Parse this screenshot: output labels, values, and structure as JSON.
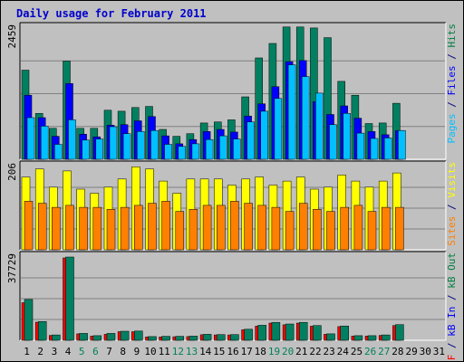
{
  "chart_data": {
    "type": "bar",
    "title": "Daily usage for February 2011",
    "categories": [
      "1",
      "2",
      "3",
      "4",
      "5",
      "6",
      "7",
      "8",
      "9",
      "10",
      "11",
      "12",
      "13",
      "14",
      "15",
      "16",
      "17",
      "18",
      "19",
      "20",
      "21",
      "22",
      "23",
      "24",
      "25",
      "26",
      "27",
      "28",
      "29",
      "30",
      "31"
    ],
    "weekend_days": [
      5,
      6,
      12,
      13,
      19,
      20,
      26,
      27
    ],
    "panels": [
      {
        "id": "hits",
        "ymax_label": "2459",
        "ymax": 2459,
        "right_labels": [
          {
            "text": "Pages",
            "color": "#00c0ff"
          },
          {
            "text": " / ",
            "color": "#000080"
          },
          {
            "text": "Files",
            "color": "#0000ff"
          },
          {
            "text": " / ",
            "color": "#000080"
          },
          {
            "text": "Hits",
            "color": "#008040"
          }
        ],
        "series": [
          {
            "name": "Hits",
            "color": "#008060",
            "values": [
              1670,
              860,
              580,
              1840,
              580,
              580,
              920,
              900,
              970,
              990,
              560,
              430,
              480,
              680,
              700,
              740,
              1170,
              1900,
              2170,
              2480,
              2480,
              2460,
              2280,
              1460,
              1200,
              670,
              680,
              1050,
              0,
              0,
              0
            ]
          },
          {
            "name": "Files",
            "color": "#0000ff",
            "values": [
              1200,
              780,
              430,
              1420,
              470,
              420,
              640,
              650,
              720,
              800,
              440,
              290,
              370,
              520,
              560,
              510,
              810,
              1040,
              1360,
              1830,
              1850,
              1080,
              840,
              1000,
              770,
              520,
              460,
              540,
              0,
              0,
              0
            ]
          },
          {
            "name": "Pages",
            "color": "#00c0ff",
            "values": [
              780,
              620,
              280,
              740,
              360,
              380,
              610,
              480,
              520,
              540,
              280,
              240,
              290,
              370,
              440,
              380,
              700,
              900,
              1140,
              1770,
              1550,
              1240,
              650,
              860,
              490,
              390,
              400,
              540,
              0,
              0,
              0
            ]
          }
        ]
      },
      {
        "id": "visits",
        "ymax_label": "206",
        "ymax": 206,
        "right_labels": [
          {
            "text": "Sites",
            "color": "#ff8000"
          },
          {
            "text": " / ",
            "color": "#000080"
          },
          {
            "text": "Visits",
            "color": "#ffff00"
          }
        ],
        "series": [
          {
            "name": "Visits",
            "color": "#ffff00",
            "values": [
              180,
              200,
              155,
              195,
              150,
              140,
              155,
              175,
              205,
              200,
              170,
              140,
              175,
              175,
              175,
              160,
              175,
              180,
              160,
              170,
              180,
              150,
              155,
              185,
              170,
              155,
              170,
              190,
              0,
              0,
              0
            ]
          },
          {
            "name": "Sites",
            "color": "#ff8000",
            "values": [
              120,
              115,
              105,
              110,
              105,
              105,
              100,
              105,
              110,
              115,
              120,
              95,
              100,
              110,
              110,
              120,
              115,
              110,
              105,
              95,
              115,
              100,
              95,
              105,
              110,
              95,
              105,
              105,
              0,
              0,
              0
            ]
          }
        ]
      },
      {
        "id": "kbytes",
        "ymax_label": "37729",
        "ymax": 37729,
        "right_labels": [
          {
            "text": "kB F",
            "color": "#ff0000"
          },
          {
            "text": " / ",
            "color": "#000080"
          },
          {
            "text": "kB In",
            "color": "#0000ff"
          },
          {
            "text": " / ",
            "color": "#000080"
          },
          {
            "text": "kB Out",
            "color": "#008040"
          }
        ],
        "series": [
          {
            "name": "kB F",
            "color": "#ff0000",
            "values": [
              17000,
              8200,
              2200,
              37300,
              2900,
              1900,
              2700,
              3900,
              3900,
              1500,
              1500,
              1600,
              1700,
              2500,
              2400,
              2400,
              4800,
              6400,
              7800,
              7000,
              7800,
              6400,
              2700,
              6200,
              1900,
              1900,
              2200,
              6700,
              0,
              0,
              0
            ]
          },
          {
            "name": "kB Out",
            "color": "#008060",
            "values": [
              18500,
              8500,
              2400,
              37729,
              3100,
              2100,
              3100,
              4100,
              4200,
              1700,
              1800,
              1800,
              1900,
              2700,
              2600,
              2600,
              5000,
              6800,
              8100,
              7400,
              8100,
              6700,
              2900,
              6500,
              2100,
              2100,
              2400,
              7100,
              0,
              0,
              0
            ]
          }
        ]
      }
    ],
    "grid": true,
    "legend_placement": "right-vertical"
  }
}
